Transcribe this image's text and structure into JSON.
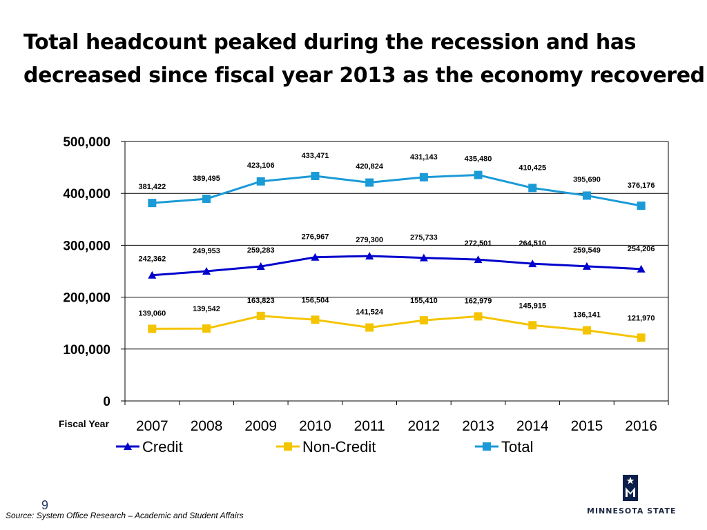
{
  "page": {
    "title_line1": "Total headcount peaked during the recession and has",
    "title_line2": "decreased since fiscal year 2013 as the economy recovered",
    "page_number": "9",
    "source": "Source: System Office Research – Academic and Student Affairs",
    "logo_text": "MINNESOTA STATE"
  },
  "chart_data": {
    "type": "line",
    "title": "",
    "xlabel": "Fiscal Year",
    "ylabel": "",
    "ylim": [
      0,
      500000
    ],
    "yticks": [
      0,
      100000,
      200000,
      300000,
      400000,
      500000
    ],
    "ytick_labels": [
      "0",
      "100,000",
      "200,000",
      "300,000",
      "400,000",
      "500,000"
    ],
    "grid": true,
    "legend_position": "bottom",
    "categories": [
      "2007",
      "2008",
      "2009",
      "2010",
      "2011",
      "2012",
      "2013",
      "2014",
      "2015",
      "2016"
    ],
    "series": [
      {
        "name": "Credit",
        "color": "#0000cc",
        "marker": "triangle",
        "values": [
          242362,
          249953,
          259283,
          276967,
          279300,
          275733,
          272501,
          264510,
          259549,
          254206
        ],
        "labels": [
          "242,362",
          "249,953",
          "259,283",
          "276,967",
          "279,300",
          "275,733",
          "272,501",
          "264,510",
          "259,549",
          "254,206"
        ]
      },
      {
        "name": "Non-Credit",
        "color": "#f5c400",
        "marker": "square",
        "values": [
          139060,
          139542,
          163823,
          156504,
          141524,
          155410,
          162979,
          145915,
          136141,
          121970
        ],
        "labels": [
          "139,060",
          "139,542",
          "163,823",
          "156,504",
          "141,524",
          "155,410",
          "162,979",
          "145,915",
          "136,141",
          "121,970"
        ]
      },
      {
        "name": "Total",
        "color": "#1a9ad6",
        "marker": "square",
        "values": [
          381422,
          389495,
          423106,
          433471,
          420824,
          431143,
          435480,
          410425,
          395690,
          376176
        ],
        "labels": [
          "381,422",
          "389,495",
          "423,106",
          "433,471",
          "420,824",
          "431,143",
          "435,480",
          "410,425",
          "395,690",
          "376,176"
        ]
      }
    ]
  }
}
